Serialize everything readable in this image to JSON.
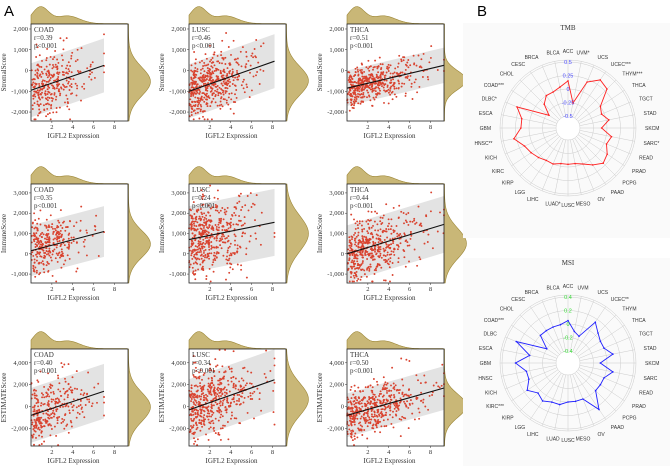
{
  "figure": {
    "panel_a_label": "A",
    "panel_b_label": "B"
  },
  "colors": {
    "point": "#d9432f",
    "density_fill": "#c9b777",
    "density_stroke": "#9c8636",
    "band": "#e3e3e3",
    "tmb_line": "#ff2020",
    "msi_line": "#2020ff",
    "tmb_tick": "#4a4aff",
    "msi_tick": "#33dd33"
  },
  "chart_data": [
    {
      "type": "scatter",
      "cancer": "COAD",
      "r_label": "r=0.39",
      "p_label": "p<0.001",
      "xlabel": "IGFL2 Expression",
      "ylabel": "StromalScore",
      "xlim": [
        0,
        9.3
      ],
      "ylim": [
        -2430,
        2240
      ],
      "xticks": [
        2,
        4,
        6,
        8
      ],
      "yticks": [
        -2000,
        -1000,
        0,
        1000,
        2000
      ],
      "ytick_labels": [
        "-2,000",
        "-1,000",
        "0",
        "1,000",
        "2,000"
      ],
      "line": [
        [
          0,
          -950
        ],
        [
          7,
          250
        ]
      ],
      "xmax": 7,
      "band": 1300,
      "n": 300,
      "seed": 11
    },
    {
      "type": "scatter",
      "cancer": "LUSC",
      "r_label": "r=0.46",
      "p_label": "p<0.001",
      "xlabel": "IGFL2 Expression",
      "ylabel": "StromalScore",
      "xlim": [
        0,
        9.3
      ],
      "ylim": [
        -2430,
        2240
      ],
      "xticks": [
        2,
        4,
        6,
        8
      ],
      "yticks": [
        -2000,
        -1000,
        0,
        1000,
        2000
      ],
      "ytick_labels": [
        "-2,000",
        "-1,000",
        "0",
        "1,000",
        "2,000"
      ],
      "line": [
        [
          0,
          -1000
        ],
        [
          8.2,
          450
        ]
      ],
      "xmax": 8.2,
      "band": 1300,
      "n": 480,
      "seed": 12
    },
    {
      "type": "scatter",
      "cancer": "THCA",
      "r_label": "r=0.51",
      "p_label": "p<0.001",
      "xlabel": "IGFL2 Expression",
      "ylabel": "StromalScore",
      "xlim": [
        0,
        9.3
      ],
      "ylim": [
        -2430,
        2240
      ],
      "xticks": [
        2,
        4,
        6,
        8
      ],
      "yticks": [
        -2000,
        -1000,
        0,
        1000,
        2000
      ],
      "ytick_labels": [
        "-2,000",
        "-1,000",
        "0",
        "1,000",
        "2,000"
      ],
      "line": [
        [
          0,
          -850
        ],
        [
          9.3,
          250
        ]
      ],
      "xmax": 9.3,
      "band": 850,
      "n": 480,
      "seed": 13
    },
    {
      "type": "scatter",
      "cancer": "COAD",
      "r_label": "r=0.35",
      "p_label": "p<0.001",
      "xlabel": "IGFL2 Expression",
      "ylabel": "ImmuneScore",
      "xlim": [
        0,
        9.3
      ],
      "ylim": [
        -1440,
        3440
      ],
      "xticks": [
        2,
        4,
        6,
        8
      ],
      "yticks": [
        -1000,
        0,
        1000,
        2000,
        3000
      ],
      "ytick_labels": [
        "-1,000",
        "0",
        "1,000",
        "2,000",
        "3,000"
      ],
      "line": [
        [
          0,
          150
        ],
        [
          7,
          1100
        ]
      ],
      "xmax": 7,
      "band": 1250,
      "n": 300,
      "seed": 21
    },
    {
      "type": "scatter",
      "cancer": "LUSC",
      "r_label": "r=0.24",
      "p_label": "p<0.001",
      "xlabel": "IGFL2 Expression",
      "ylabel": "ImmuneScore",
      "xlim": [
        0,
        9.3
      ],
      "ylim": [
        -1440,
        3440
      ],
      "xticks": [
        2,
        4,
        6,
        8
      ],
      "yticks": [
        -1000,
        0,
        1000,
        2000,
        3000
      ],
      "ytick_labels": [
        "-1,000",
        "0",
        "1,000",
        "2,000",
        "3,000"
      ],
      "line": [
        [
          0,
          700
        ],
        [
          8.2,
          1550
        ]
      ],
      "xmax": 8.2,
      "band": 1650,
      "n": 480,
      "seed": 22
    },
    {
      "type": "scatter",
      "cancer": "THCA",
      "r_label": "r=0.44",
      "p_label": "p<0.001",
      "xlabel": "IGFL2 Expression",
      "ylabel": "ImmuneScore",
      "xlim": [
        0,
        9.3
      ],
      "ylim": [
        -1440,
        3440
      ],
      "xticks": [
        2,
        4,
        6,
        8
      ],
      "yticks": [
        -1000,
        0,
        1000,
        2000,
        3000
      ],
      "ytick_labels": [
        "-1,000",
        "0",
        "1,000",
        "2,000",
        "3,000"
      ],
      "line": [
        [
          0,
          0
        ],
        [
          9.3,
          1450
        ]
      ],
      "xmax": 9.3,
      "band": 1400,
      "n": 480,
      "seed": 23
    },
    {
      "type": "scatter",
      "cancer": "COAD",
      "r_label": "r=0.40",
      "p_label": "p<0.001",
      "xlabel": "IGFL2 Expression",
      "ylabel": "ESTIMATEScore",
      "xlim": [
        0,
        9.3
      ],
      "ylim": [
        -3600,
        5260
      ],
      "xticks": [
        2,
        4,
        6,
        8
      ],
      "yticks": [
        -2000,
        0,
        2000,
        4000
      ],
      "ytick_labels": [
        "-2,000",
        "0",
        "2,000",
        "4,000"
      ],
      "line": [
        [
          0,
          -800
        ],
        [
          7,
          1400
        ]
      ],
      "xmax": 7,
      "band": 2500,
      "n": 300,
      "seed": 31
    },
    {
      "type": "scatter",
      "cancer": "LUSC",
      "r_label": "r=0.34",
      "p_label": "p<0.001",
      "xlabel": "IGFL2 Expression",
      "ylabel": "ESTIMATEScore",
      "xlim": [
        0,
        9.3
      ],
      "ylim": [
        -3600,
        5260
      ],
      "xticks": [
        2,
        4,
        6,
        8
      ],
      "yticks": [
        -2000,
        0,
        2000,
        4000
      ],
      "ytick_labels": [
        "-2,000",
        "0",
        "2,000",
        "4,000"
      ],
      "line": [
        [
          0,
          -300
        ],
        [
          8.2,
          2450
        ]
      ],
      "xmax": 8.2,
      "band": 2800,
      "n": 480,
      "seed": 32
    },
    {
      "type": "scatter",
      "cancer": "THCA",
      "r_label": "r=0.50",
      "p_label": "p<0.001",
      "xlabel": "IGFL2 Expression",
      "ylabel": "ESTIMATEScore",
      "xlim": [
        0,
        9.3
      ],
      "ylim": [
        -3600,
        5260
      ],
      "xticks": [
        2,
        4,
        6,
        8
      ],
      "yticks": [
        -2000,
        0,
        2000,
        4000
      ],
      "ytick_labels": [
        "-2,000",
        "0",
        "2,000",
        "4,000"
      ],
      "line": [
        [
          0,
          -800
        ],
        [
          9.3,
          1700
        ]
      ],
      "xmax": 9.3,
      "band": 2000,
      "n": 480,
      "seed": 33
    },
    {
      "type": "radar",
      "title": "TMB",
      "range": [
        -0.5,
        0.5
      ],
      "ticks": [
        0.5,
        0.25,
        0,
        -0.25,
        -0.5
      ],
      "tick_labels": [
        "0.5",
        "0.25",
        "0",
        "-0.25",
        "-0.5"
      ],
      "categories": [
        "ACC",
        "UVM*",
        "UCS",
        "UCEC***",
        "THYM***",
        "THCA",
        "TGCT",
        "STAD",
        "SKCM",
        "SARC*",
        "READ",
        "PRAD",
        "PCPG",
        "PAAD",
        "OV",
        "MESO",
        "LUSC",
        "LUAD*",
        "LIHC",
        "LGG",
        "KIRP",
        "KIRC",
        "KICH",
        "HNSC**",
        "GBM",
        "ESCA",
        "DLBC*",
        "COAD***",
        "CHOL",
        "CESC",
        "BRCA",
        "BLCA"
      ],
      "values": [
        0.15,
        -0.25,
        0.2,
        0.35,
        0.3,
        0.0,
        -0.05,
        0.05,
        -0.1,
        0.1,
        0.05,
        0.15,
        0.2,
        0.1,
        0.0,
        -0.05,
        -0.05,
        -0.05,
        0.0,
        0.0,
        0.05,
        0.1,
        0.15,
        0.3,
        0.15,
        0.15,
        0.3,
        -0.3,
        -0.1,
        0.0,
        0.0,
        0.05
      ]
    },
    {
      "type": "radar",
      "title": "MSI",
      "range": [
        -0.4,
        0.4
      ],
      "ticks": [
        0.4,
        0.2,
        0,
        -0.2,
        -0.4
      ],
      "tick_labels": [
        "0.4",
        "0.2",
        "0",
        "-0.2",
        "-0.4"
      ],
      "categories": [
        "ACC",
        "UVM",
        "UCS",
        "UCEC**",
        "THYM",
        "THCA",
        "TGCT",
        "STAD",
        "SKCM",
        "SARC",
        "READ",
        "PRAD",
        "PCPG",
        "PAAD",
        "OV",
        "MESO",
        "LUSC",
        "LUAD",
        "LIHC",
        "LGG",
        "KIRP",
        "KIRC***",
        "KICH",
        "HNSC",
        "GBM",
        "ESCA",
        "DLBC",
        "COAD***",
        "CHOL",
        "CESC",
        "BRCA",
        "BLCA"
      ],
      "values": [
        0.05,
        -0.1,
        -0.15,
        0.15,
        0.05,
        0.0,
        0.0,
        0.1,
        -0.1,
        0.1,
        0.0,
        0.0,
        0.0,
        0.25,
        0.0,
        0.0,
        0.0,
        0.05,
        0.05,
        0.1,
        0.05,
        0.15,
        0.05,
        0.05,
        0.2,
        0.0,
        0.25,
        -0.2,
        0.0,
        0.0,
        0.0,
        0.0
      ]
    }
  ]
}
